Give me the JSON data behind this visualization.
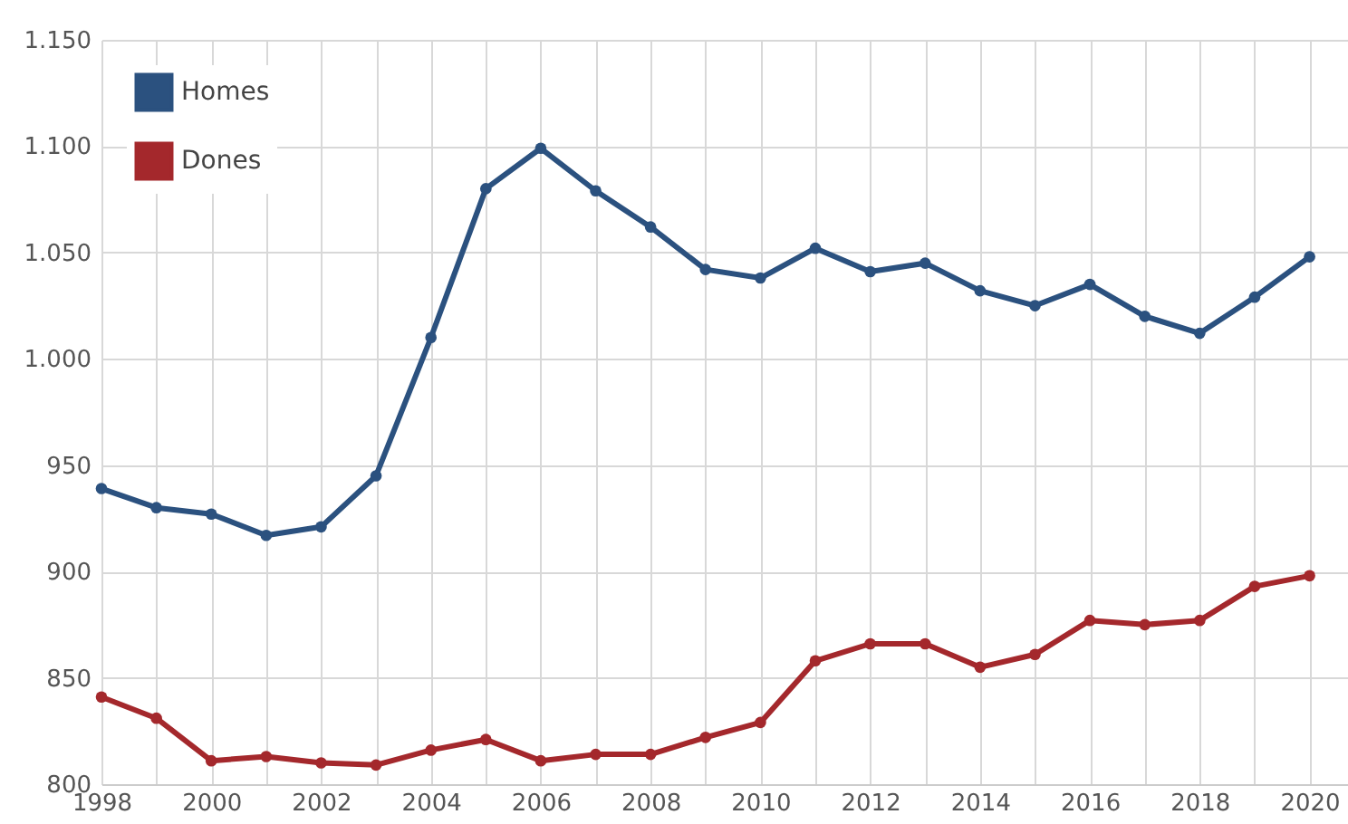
{
  "chart_data": {
    "type": "line",
    "x": [
      1998,
      1999,
      2000,
      2001,
      2002,
      2003,
      2004,
      2005,
      2006,
      2007,
      2008,
      2009,
      2010,
      2011,
      2012,
      2013,
      2014,
      2015,
      2016,
      2017,
      2018,
      2019,
      2020
    ],
    "series": [
      {
        "name": "Homes",
        "color": "#2b517f",
        "values": [
          939,
          930,
          927,
          917,
          921,
          945,
          1010,
          1080,
          1099,
          1079,
          1062,
          1042,
          1038,
          1052,
          1041,
          1045,
          1032,
          1025,
          1035,
          1020,
          1012,
          1029,
          1048
        ]
      },
      {
        "name": "Dones",
        "color": "#a4282c",
        "values": [
          841,
          831,
          811,
          813,
          810,
          809,
          816,
          821,
          811,
          814,
          814,
          822,
          829,
          858,
          866,
          866,
          855,
          861,
          877,
          875,
          877,
          893,
          898
        ]
      }
    ],
    "xlim": [
      1998,
      2020.7
    ],
    "xticks": [
      1998,
      {
        "value": 1999,
        "label": null
      },
      2000,
      {
        "value": 2001,
        "label": null
      },
      2002,
      {
        "value": 2003,
        "label": null
      },
      2004,
      {
        "value": 2005,
        "label": null
      },
      2006,
      {
        "value": 2007,
        "label": null
      },
      2008,
      {
        "value": 2009,
        "label": null
      },
      2010,
      {
        "value": 2011,
        "label": null
      },
      2012,
      {
        "value": 2013,
        "label": null
      },
      2014,
      {
        "value": 2015,
        "label": null
      },
      2016,
      {
        "value": 2017,
        "label": null
      },
      2018,
      {
        "value": 2019,
        "label": null
      },
      2020
    ],
    "ylim": [
      800,
      1150
    ],
    "yticks": [
      800,
      850,
      900,
      950,
      {
        "value": 1000,
        "label": "1.000"
      },
      {
        "value": 1050,
        "label": "1.050"
      },
      {
        "value": 1100,
        "label": "1.100"
      },
      {
        "value": 1150,
        "label": "1.150"
      }
    ],
    "grid": true,
    "legend": "top left",
    "marker": "circle",
    "line_style": "solid"
  }
}
